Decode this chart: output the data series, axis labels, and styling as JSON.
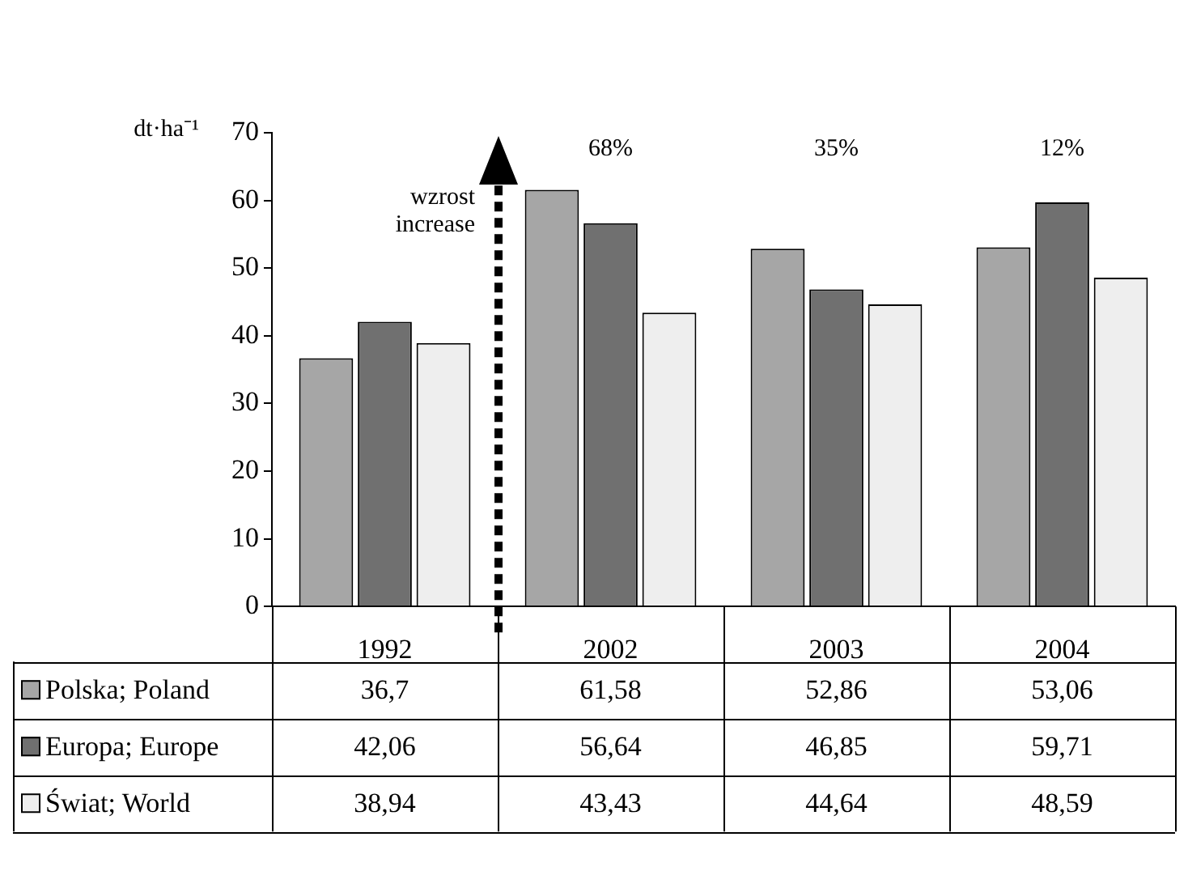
{
  "chart_data": {
    "type": "bar",
    "ylabel": "dt·ha⁻¹",
    "categories": [
      "1992",
      "2002",
      "2003",
      "2004"
    ],
    "series": [
      {
        "name": "Polska; Poland",
        "color": "#a6a6a6",
        "values": [
          36.7,
          61.58,
          52.86,
          53.06
        ],
        "value_labels": [
          "36,7",
          "61,58",
          "52,86",
          "53,06"
        ]
      },
      {
        "name": "Europa; Europe",
        "color": "#707070",
        "values": [
          42.06,
          56.64,
          46.85,
          59.71
        ],
        "value_labels": [
          "42,06",
          "56,64",
          "46,85",
          "59,71"
        ]
      },
      {
        "name": "Świat; World",
        "color": "#eeeeee",
        "values": [
          38.94,
          43.43,
          44.64,
          48.59
        ],
        "value_labels": [
          "38,94",
          "43,43",
          "44,64",
          "48,59"
        ]
      }
    ],
    "ylim": [
      0,
      70
    ],
    "yticks": [
      0,
      10,
      20,
      30,
      40,
      50,
      60,
      70
    ],
    "grid": false,
    "legend": "bottom left",
    "annotations": [
      "wzrost\nincrease",
      "68%",
      "35%",
      "12%"
    ]
  }
}
